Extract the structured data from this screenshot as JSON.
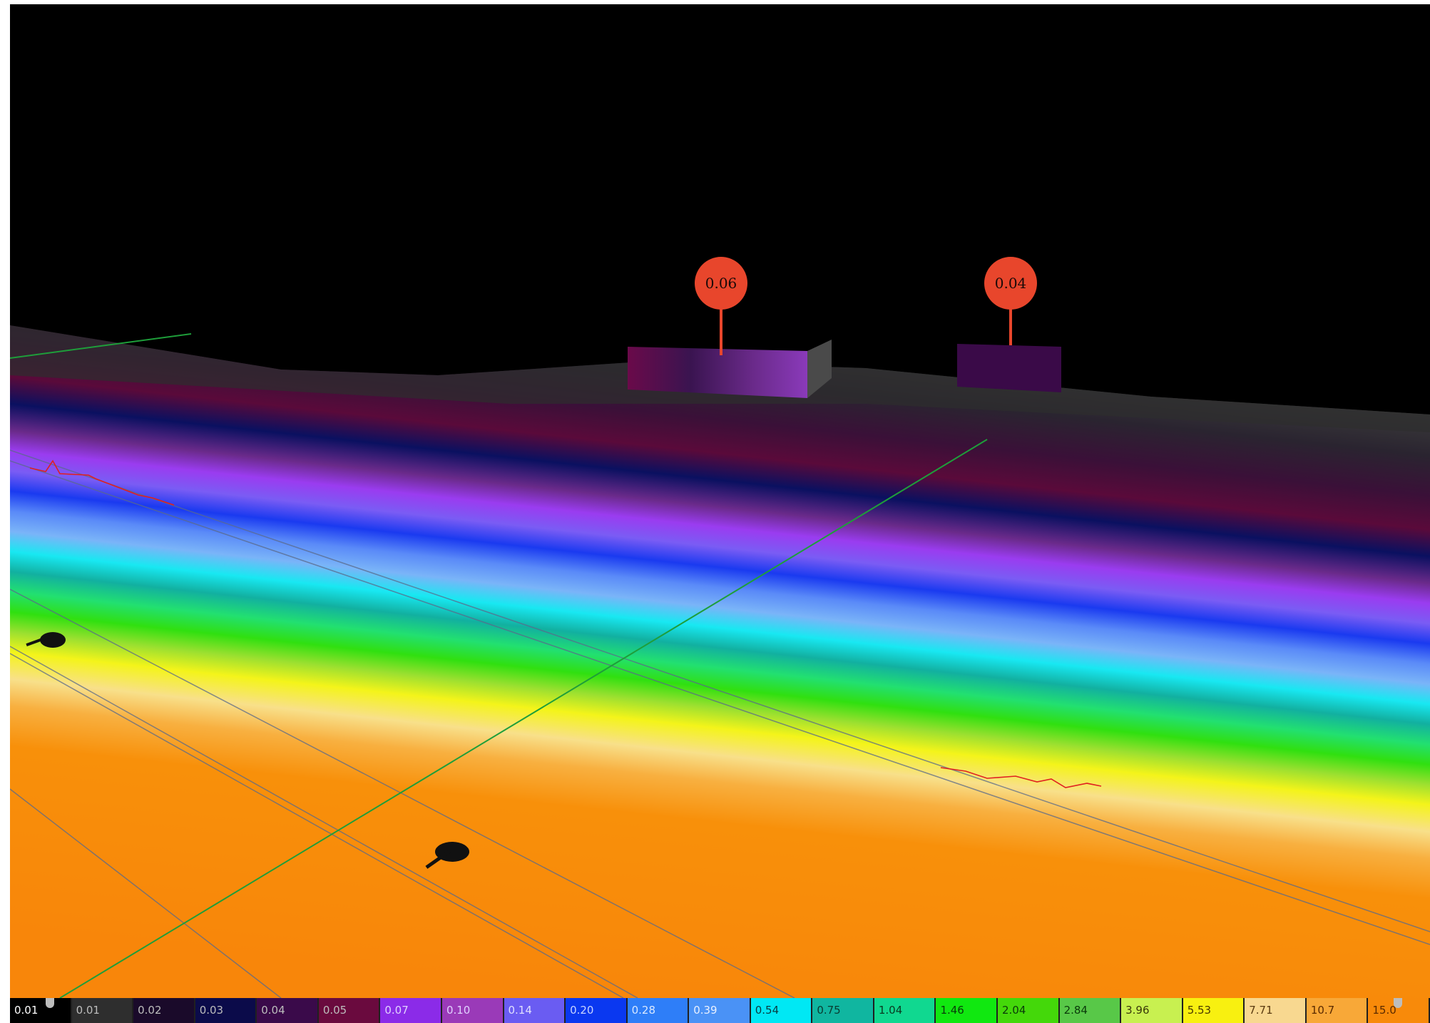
{
  "markers": [
    {
      "label": "0.06"
    },
    {
      "label": "0.04"
    }
  ],
  "legend": {
    "stops": [
      {
        "label": "0.01",
        "color": "#000000",
        "text": "#ffffff"
      },
      {
        "label": "0.01",
        "color": "#2e2e2e",
        "text": "#bdbdbd"
      },
      {
        "label": "0.02",
        "color": "#1a0a2a",
        "text": "#bdbdbd"
      },
      {
        "label": "0.03",
        "color": "#0b0b4a",
        "text": "#bdbdbd"
      },
      {
        "label": "0.04",
        "color": "#3a0a4a",
        "text": "#bdbdbd"
      },
      {
        "label": "0.05",
        "color": "#6a0a3e",
        "text": "#bdbdbd"
      },
      {
        "label": "0.07",
        "color": "#8b2be8",
        "text": "#e0d0ff"
      },
      {
        "label": "0.10",
        "color": "#9a3ab8",
        "text": "#e0d0ff"
      },
      {
        "label": "0.14",
        "color": "#6a5cf2",
        "text": "#e0e0ff"
      },
      {
        "label": "0.20",
        "color": "#0a38f0",
        "text": "#c8d4ff"
      },
      {
        "label": "0.28",
        "color": "#2e7ef8",
        "text": "#d8e8ff"
      },
      {
        "label": "0.39",
        "color": "#4a92f6",
        "text": "#e8f0ff"
      },
      {
        "label": "0.54",
        "color": "#00e8f4",
        "text": "#0a3a40"
      },
      {
        "label": "0.75",
        "color": "#10b6a0",
        "text": "#0a3a30"
      },
      {
        "label": "1.04",
        "color": "#10d890",
        "text": "#0a3a20"
      },
      {
        "label": "1.46",
        "color": "#10e810",
        "text": "#0a3a0a"
      },
      {
        "label": "2.04",
        "color": "#44d80a",
        "text": "#0a3a0a"
      },
      {
        "label": "2.84",
        "color": "#58c848",
        "text": "#0a3a0a"
      },
      {
        "label": "3.96",
        "color": "#c8f050",
        "text": "#3a3a0a"
      },
      {
        "label": "5.53",
        "color": "#f8f010",
        "text": "#4a3a00"
      },
      {
        "label": "7.71",
        "color": "#f8d890",
        "text": "#5a3a10"
      },
      {
        "label": "10.7",
        "color": "#f8a838",
        "text": "#5a2a00"
      },
      {
        "label": "15.0",
        "color": "#f88a0a",
        "text": "#5a2a00"
      }
    ]
  },
  "colors": {
    "marker": "#e8462c",
    "axis_line": "#1e9e3a",
    "profile_line": "#e02020",
    "background": "#000000"
  }
}
